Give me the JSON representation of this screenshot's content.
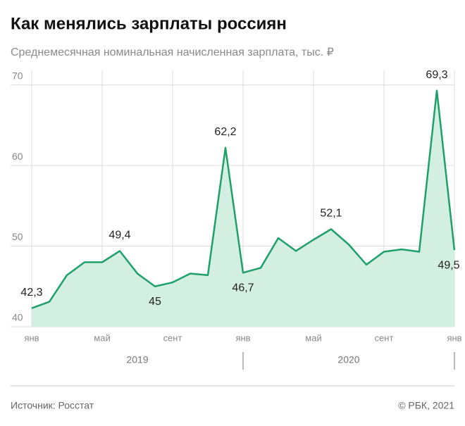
{
  "chart_data": {
    "type": "area",
    "title": "Как менялись зарплаты россиян",
    "subtitle": "Среднемесячная номинальная начисленная зарплата, тыс. ₽",
    "categories": [
      "янв",
      null,
      null,
      null,
      "май",
      null,
      null,
      null,
      "сент",
      null,
      null,
      null,
      "янв",
      null,
      null,
      null,
      "май",
      null,
      null,
      null,
      "сент",
      null,
      null,
      null,
      "янв"
    ],
    "values": [
      42.3,
      43.1,
      46.4,
      48.0,
      48.0,
      49.4,
      46.6,
      45,
      45.5,
      46.6,
      46.4,
      62.2,
      46.7,
      47.3,
      51.0,
      49.4,
      50.8,
      52.1,
      50.2,
      47.7,
      49.3,
      49.6,
      49.3,
      69.3,
      49.5
    ],
    "value_labels": [
      "42,3",
      null,
      null,
      null,
      null,
      "49,4",
      null,
      "45",
      null,
      null,
      null,
      "62,2",
      "46,7",
      null,
      null,
      null,
      null,
      "52,1",
      null,
      null,
      null,
      null,
      null,
      "69,3",
      "49,5"
    ],
    "year_labels": [
      "2019",
      "2020"
    ],
    "color": "#1fa06a",
    "fill": "#d3efe1",
    "ylim": [
      40,
      71.8
    ],
    "yticks": [
      40,
      50,
      60,
      70
    ],
    "grid": true,
    "source": "Источник: Росстат",
    "copyright": "© РБК, 2021"
  }
}
